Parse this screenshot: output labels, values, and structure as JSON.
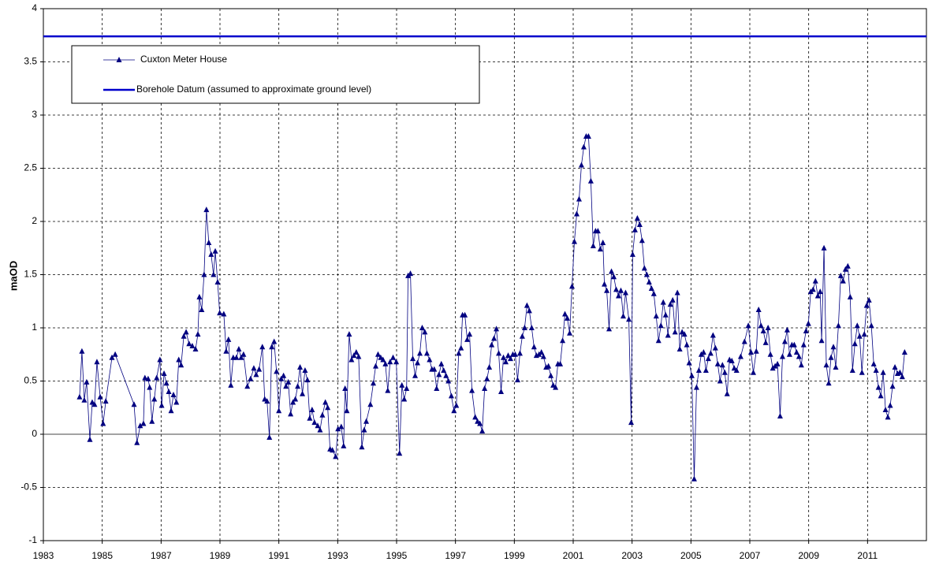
{
  "chart_data": {
    "type": "line",
    "y_label": "maOD",
    "xlim": [
      1983,
      2013
    ],
    "xticks": [
      1983,
      1985,
      1987,
      1989,
      1991,
      1993,
      1995,
      1997,
      1999,
      2001,
      2003,
      2005,
      2007,
      2009,
      2011
    ],
    "ylim": [
      -1,
      4
    ],
    "yticks": [
      -1,
      -0.5,
      0,
      0.5,
      1,
      1.5,
      2,
      2.5,
      3,
      3.5,
      4
    ],
    "grid": true,
    "x": [
      1984.23,
      1984.31,
      1984.39,
      1984.47,
      1984.58,
      1984.66,
      1984.74,
      1984.82,
      1984.93,
      1985.03,
      1985.12,
      1985.33,
      1985.44,
      1986.08,
      1986.18,
      1986.29,
      1986.4,
      1986.45,
      1986.56,
      1986.61,
      1986.69,
      1986.77,
      1986.85,
      1986.96,
      1987.02,
      1987.1,
      1987.18,
      1987.26,
      1987.34,
      1987.42,
      1987.52,
      1987.6,
      1987.68,
      1987.77,
      1987.85,
      1987.95,
      1988.06,
      1988.17,
      1988.25,
      1988.3,
      1988.38,
      1988.46,
      1988.54,
      1988.62,
      1988.7,
      1988.78,
      1988.84,
      1988.92,
      1988.99,
      1989.13,
      1989.21,
      1989.29,
      1989.37,
      1989.45,
      1989.56,
      1989.64,
      1989.72,
      1989.8,
      1989.93,
      1990.04,
      1990.15,
      1990.23,
      1990.33,
      1990.44,
      1990.52,
      1990.6,
      1990.68,
      1990.76,
      1990.84,
      1990.92,
      1991.0,
      1991.08,
      1991.16,
      1991.24,
      1991.32,
      1991.4,
      1991.48,
      1991.56,
      1991.64,
      1991.72,
      1991.8,
      1991.89,
      1991.97,
      1992.05,
      1992.13,
      1992.21,
      1992.32,
      1992.4,
      1992.48,
      1992.58,
      1992.66,
      1992.74,
      1992.82,
      1992.93,
      1993.01,
      1993.12,
      1993.2,
      1993.25,
      1993.31,
      1993.39,
      1993.47,
      1993.55,
      1993.63,
      1993.71,
      1993.82,
      1993.9,
      1993.97,
      1994.11,
      1994.21,
      1994.29,
      1994.37,
      1994.46,
      1994.54,
      1994.62,
      1994.7,
      1994.78,
      1994.88,
      1994.99,
      1995.1,
      1995.18,
      1995.26,
      1995.34,
      1995.39,
      1995.47,
      1995.55,
      1995.63,
      1995.71,
      1995.79,
      1995.87,
      1995.96,
      1996.03,
      1996.12,
      1996.2,
      1996.28,
      1996.36,
      1996.44,
      1996.52,
      1996.6,
      1996.68,
      1996.76,
      1996.86,
      1996.95,
      1997.03,
      1997.11,
      1997.19,
      1997.24,
      1997.32,
      1997.4,
      1997.48,
      1997.56,
      1997.67,
      1997.75,
      1997.83,
      1997.91,
      1997.99,
      1998.07,
      1998.15,
      1998.23,
      1998.31,
      1998.39,
      1998.47,
      1998.55,
      1998.63,
      1998.71,
      1998.79,
      1998.87,
      1998.95,
      1999.03,
      1999.11,
      1999.19,
      1999.27,
      1999.35,
      1999.43,
      1999.51,
      1999.59,
      1999.67,
      1999.75,
      1999.84,
      1999.92,
      1999.99,
      2000.08,
      2000.16,
      2000.24,
      2000.32,
      2000.4,
      2000.48,
      2000.56,
      2000.64,
      2000.72,
      2000.8,
      2000.88,
      2000.96,
      2001.04,
      2001.12,
      2001.2,
      2001.28,
      2001.36,
      2001.44,
      2001.52,
      2001.6,
      2001.68,
      2001.76,
      2001.84,
      2001.92,
      2002.01,
      2002.06,
      2002.14,
      2002.22,
      2002.3,
      2002.38,
      2002.46,
      2002.54,
      2002.62,
      2002.7,
      2002.78,
      2002.89,
      2002.97,
      2003.02,
      2003.1,
      2003.18,
      2003.26,
      2003.34,
      2003.42,
      2003.5,
      2003.58,
      2003.66,
      2003.74,
      2003.82,
      2003.9,
      2003.98,
      2004.06,
      2004.14,
      2004.22,
      2004.3,
      2004.38,
      2004.46,
      2004.54,
      2004.62,
      2004.7,
      2004.78,
      2004.86,
      2004.94,
      2005.03,
      2005.11,
      2005.19,
      2005.27,
      2005.35,
      2005.43,
      2005.51,
      2005.59,
      2005.67,
      2005.75,
      2005.83,
      2005.91,
      2005.99,
      2006.07,
      2006.15,
      2006.23,
      2006.31,
      2006.39,
      2006.47,
      2006.55,
      2006.69,
      2006.82,
      2006.95,
      2007.04,
      2007.12,
      2007.22,
      2007.3,
      2007.38,
      2007.46,
      2007.54,
      2007.62,
      2007.7,
      2007.78,
      2007.86,
      2007.94,
      2008.03,
      2008.11,
      2008.19,
      2008.27,
      2008.35,
      2008.43,
      2008.51,
      2008.59,
      2008.67,
      2008.75,
      2008.83,
      2008.91,
      2008.99,
      2009.07,
      2009.15,
      2009.23,
      2009.31,
      2009.39,
      2009.44,
      2009.52,
      2009.6,
      2009.68,
      2009.76,
      2009.84,
      2009.92,
      2010.01,
      2010.09,
      2010.17,
      2010.25,
      2010.33,
      2010.41,
      2010.49,
      2010.57,
      2010.65,
      2010.73,
      2010.81,
      2010.89,
      2010.97,
      2011.05,
      2011.13,
      2011.21,
      2011.29,
      2011.37,
      2011.45,
      2011.53,
      2011.61,
      2011.69,
      2011.77,
      2011.85,
      2011.93,
      2012.02,
      2012.1,
      2012.18,
      2012.26
    ],
    "series": [
      {
        "name": "Cuxton Meter House",
        "color": "#000080",
        "values": [
          0.35,
          0.78,
          0.32,
          0.49,
          -0.05,
          0.3,
          0.28,
          0.68,
          0.35,
          0.1,
          0.31,
          0.72,
          0.75,
          0.28,
          -0.08,
          0.08,
          0.1,
          0.53,
          0.52,
          0.44,
          0.12,
          0.33,
          0.53,
          0.7,
          0.27,
          0.57,
          0.48,
          0.4,
          0.22,
          0.37,
          0.3,
          0.7,
          0.65,
          0.92,
          0.96,
          0.85,
          0.83,
          0.8,
          0.94,
          1.29,
          1.17,
          1.5,
          2.11,
          1.8,
          1.69,
          1.5,
          1.72,
          1.43,
          1.14,
          1.13,
          0.78,
          0.89,
          0.46,
          0.72,
          0.72,
          0.8,
          0.72,
          0.75,
          0.45,
          0.52,
          0.62,
          0.56,
          0.61,
          0.82,
          0.33,
          0.31,
          -0.03,
          0.82,
          0.87,
          0.59,
          0.22,
          0.52,
          0.55,
          0.45,
          0.49,
          0.19,
          0.3,
          0.33,
          0.45,
          0.63,
          0.38,
          0.6,
          0.51,
          0.15,
          0.23,
          0.11,
          0.08,
          0.04,
          0.18,
          0.3,
          0.25,
          -0.14,
          -0.15,
          -0.21,
          0.05,
          0.07,
          -0.11,
          0.43,
          0.22,
          0.94,
          0.7,
          0.74,
          0.77,
          0.73,
          -0.12,
          0.04,
          0.12,
          0.28,
          0.48,
          0.64,
          0.75,
          0.72,
          0.7,
          0.66,
          0.41,
          0.68,
          0.72,
          0.68,
          -0.18,
          0.46,
          0.33,
          0.43,
          1.49,
          1.51,
          0.71,
          0.55,
          0.67,
          0.76,
          1.0,
          0.96,
          0.76,
          0.7,
          0.61,
          0.61,
          0.43,
          0.56,
          0.66,
          0.6,
          0.55,
          0.5,
          0.36,
          0.22,
          0.27,
          0.76,
          0.81,
          1.12,
          1.12,
          0.89,
          0.94,
          0.41,
          0.16,
          0.12,
          0.1,
          0.03,
          0.43,
          0.52,
          0.63,
          0.84,
          0.9,
          0.99,
          0.76,
          0.4,
          0.72,
          0.68,
          0.74,
          0.71,
          0.75,
          0.75,
          0.51,
          0.76,
          0.92,
          1.0,
          1.21,
          1.16,
          1.0,
          0.82,
          0.74,
          0.75,
          0.77,
          0.73,
          0.63,
          0.64,
          0.55,
          0.46,
          0.44,
          0.66,
          0.66,
          0.88,
          1.13,
          1.09,
          0.95,
          1.39,
          1.81,
          2.07,
          2.21,
          2.53,
          2.7,
          2.8,
          2.8,
          2.38,
          1.77,
          1.91,
          1.91,
          1.74,
          1.8,
          1.41,
          1.35,
          0.99,
          1.53,
          1.48,
          1.36,
          1.3,
          1.35,
          1.11,
          1.33,
          1.08,
          0.11,
          1.69,
          1.92,
          2.03,
          1.97,
          1.82,
          1.56,
          1.5,
          1.43,
          1.37,
          1.32,
          1.11,
          0.88,
          1.02,
          1.24,
          1.12,
          0.93,
          1.22,
          1.26,
          0.96,
          1.33,
          0.8,
          0.96,
          0.94,
          0.84,
          0.67,
          0.55,
          -0.42,
          0.44,
          0.6,
          0.75,
          0.77,
          0.6,
          0.71,
          0.76,
          0.93,
          0.81,
          0.66,
          0.5,
          0.65,
          0.58,
          0.38,
          0.7,
          0.69,
          0.62,
          0.6,
          0.73,
          0.87,
          1.02,
          0.77,
          0.58,
          0.78,
          1.17,
          1.02,
          0.97,
          0.86,
          1.0,
          0.75,
          0.62,
          0.64,
          0.66,
          0.17,
          0.73,
          0.87,
          0.98,
          0.75,
          0.84,
          0.84,
          0.77,
          0.73,
          0.65,
          0.84,
          0.97,
          1.04,
          1.34,
          1.36,
          1.44,
          1.3,
          1.34,
          0.88,
          1.75,
          0.65,
          0.48,
          0.72,
          0.82,
          0.63,
          1.02,
          1.49,
          1.44,
          1.55,
          1.58,
          1.29,
          0.6,
          0.85,
          1.02,
          0.92,
          0.58,
          0.94,
          1.21,
          1.26,
          1.02,
          0.66,
          0.6,
          0.44,
          0.36,
          0.58,
          0.23,
          0.16,
          0.27,
          0.45,
          0.63,
          0.57,
          0.58,
          0.54,
          0.77
        ]
      }
    ],
    "reference_lines": [
      {
        "name": "Borehole Datum (assumed to approximate ground level)",
        "value": 3.74,
        "color": "#0000cc"
      }
    ]
  }
}
